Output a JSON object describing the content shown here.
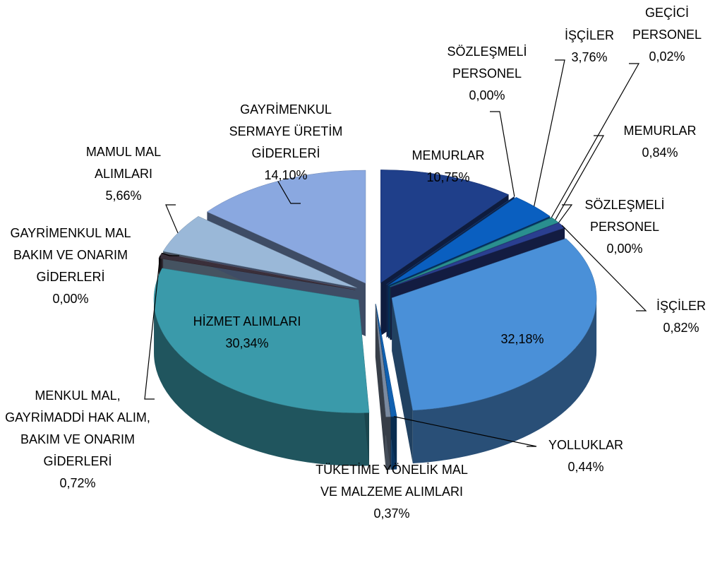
{
  "chart_data": {
    "type": "pie",
    "categories": [
      "MEMURLAR",
      "SÖZLEŞMELİ PERSONEL",
      "İŞÇİLER",
      "GEÇİCİ PERSONEL",
      "MEMURLAR",
      "SÖZLEŞMELİ PERSONEL",
      "İŞÇİLER",
      null,
      "YOLLUKLAR",
      "TÜKETİME YÖNELİK MAL VE MALZEME ALIMLARI",
      "HİZMET ALIMLARI",
      "MENKUL MAL, GAYRİMADDİ HAK ALIM, BAKIM VE ONARIM GİDERLERİ",
      "GAYRİMENKUL MAL BAKIM VE ONARIM GİDERLERİ",
      "MAMUL MAL ALIMLARI",
      "GAYRİMENKUL SERMAYE ÜRETİM GİDERLERİ"
    ],
    "values": [
      10.75,
      0.0,
      3.76,
      0.02,
      0.84,
      0.0,
      0.82,
      32.18,
      0.44,
      0.37,
      30.34,
      0.72,
      0.0,
      5.66,
      14.1
    ],
    "value_labels": [
      "10,75%",
      "0,00%",
      "3,76%",
      "0,02%",
      "0,84%",
      "0,00%",
      "0,82%",
      "32,18%",
      "0,44%",
      "0,37%",
      "30,34%",
      "0,72%",
      "0,00%",
      "5,66%",
      "14,10%"
    ],
    "colors": [
      "#1f3f8a",
      "#2050a0",
      "#0a5fc0",
      "#0a6a9a",
      "#2a8f8f",
      "#2e5aa0",
      "#2a3f90",
      "#4a90d8",
      "#1060b0",
      "#7a8aa0",
      "#3a9aaa",
      "#3a2f3a",
      "#6a5a70",
      "#9ab8d8",
      "#8aa8e0"
    ]
  }
}
